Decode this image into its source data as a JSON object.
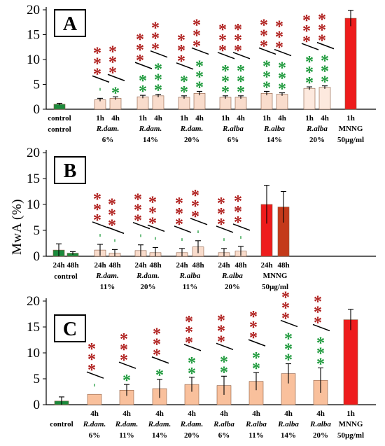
{
  "y_axis_label": "MwA (%)",
  "chart_data": [
    {
      "panel": "A",
      "type": "bar",
      "ylim": [
        0,
        20
      ],
      "yticks": [
        0,
        5,
        10,
        15,
        20
      ],
      "categories": [
        "control",
        "1h",
        "4h",
        "1h",
        "4h",
        "1h",
        "4h",
        "1h",
        "4h",
        "1h",
        "4h",
        "1h",
        "4h",
        "1h"
      ],
      "values": [
        1.0,
        1.9,
        2.2,
        2.5,
        2.7,
        2.4,
        3.2,
        2.4,
        2.4,
        3.2,
        3.0,
        4.2,
        4.4,
        18.3
      ],
      "errors": [
        0.2,
        0.3,
        0.3,
        0.3,
        0.3,
        0.3,
        0.4,
        0.3,
        0.3,
        0.4,
        0.3,
        0.3,
        0.3,
        1.6
      ],
      "colors": [
        "#1b8a3c",
        "#f9dccc",
        "#f9dccc",
        "#f9dccc",
        "#f9dccc",
        "#f9dccc",
        "#f9dccc",
        "#f9dccc",
        "#f9dccc",
        "#f9dccc",
        "#f9dccc",
        "#fde9de",
        "#fde9de",
        "#ee1c1c"
      ],
      "red_stars": [
        "",
        "***",
        "***",
        "***",
        "***",
        "***",
        "***",
        "***",
        "***",
        "***",
        "***",
        "***",
        "***",
        ""
      ],
      "green_stars": [
        "",
        "'",
        "*",
        "**",
        "***",
        "**",
        "***",
        "***",
        "***",
        "***",
        "***",
        "***",
        "***",
        ""
      ],
      "group_labels": [
        {
          "text": "control",
          "from": 0,
          "to": 0
        },
        {
          "text": "R.dam.",
          "sub": "6%",
          "from": 1,
          "to": 2
        },
        {
          "text": "R.dam.",
          "sub": "14%",
          "from": 3,
          "to": 4
        },
        {
          "text": "R.dam.",
          "sub": "20%",
          "from": 5,
          "to": 6
        },
        {
          "text": "R.alba",
          "sub": "6%",
          "from": 7,
          "to": 8
        },
        {
          "text": "R.alba",
          "sub": "14%",
          "from": 9,
          "to": 10
        },
        {
          "text": "R.alba",
          "sub": "20%",
          "from": 11,
          "to": 12
        },
        {
          "text": "MNNG",
          "sub": "50µg/ml",
          "from": 13,
          "to": 13
        }
      ]
    },
    {
      "panel": "B",
      "type": "bar",
      "ylim": [
        0,
        20
      ],
      "yticks": [
        0,
        5,
        10,
        15,
        20
      ],
      "categories": [
        "24h",
        "48h",
        "24h",
        "48h",
        "24h",
        "48h",
        "24h",
        "48h",
        "24h",
        "48h",
        "24h",
        "48h"
      ],
      "values": [
        1.2,
        0.6,
        1.2,
        0.6,
        1.1,
        0.7,
        0.7,
        1.8,
        0.7,
        1.0,
        10.0,
        9.5
      ],
      "errors": [
        1.2,
        0.3,
        1.1,
        0.7,
        1.1,
        1.0,
        0.8,
        1.2,
        0.8,
        0.9,
        3.7,
        3.0
      ],
      "colors": [
        "#1b8a3c",
        "#1b8a3c",
        "#f9dccc",
        "#f9dccc",
        "#f9dccc",
        "#f9dccc",
        "#f9dccc",
        "#f9dccc",
        "#f9dccc",
        "#f9dccc",
        "#ee1c1c",
        "#c43a1a"
      ],
      "red_stars": [
        "",
        "",
        "***",
        "***",
        "***",
        "***",
        "***",
        "***",
        "***",
        "***",
        "",
        ""
      ],
      "green_stars": [
        "",
        "",
        "'",
        "'",
        "'",
        "'",
        "'",
        "'",
        "'",
        "'",
        "",
        ""
      ],
      "group_labels": [
        {
          "text": "control",
          "from": 0,
          "to": 1
        },
        {
          "text": "R.dam.",
          "sub": "11%",
          "from": 2,
          "to": 3
        },
        {
          "text": "R.dam.",
          "sub": "20%",
          "from": 4,
          "to": 5
        },
        {
          "text": "R.alba",
          "sub": "11%",
          "from": 6,
          "to": 7
        },
        {
          "text": "R.alba",
          "sub": "20%",
          "from": 8,
          "to": 9
        },
        {
          "text": "MNNG",
          "sub": "50µg/ml",
          "from": 10,
          "to": 11
        }
      ]
    },
    {
      "panel": "C",
      "type": "bar",
      "ylim": [
        0,
        20
      ],
      "yticks": [
        0,
        5,
        10,
        15,
        20
      ],
      "categories": [
        "control",
        "4h",
        "4h",
        "4h",
        "4h",
        "4h",
        "4h",
        "4h",
        "4h",
        "1h"
      ],
      "values": [
        0.7,
        2.0,
        2.8,
        3.1,
        3.9,
        3.7,
        4.5,
        6.0,
        4.7,
        16.4
      ],
      "errors": [
        0.8,
        0.0,
        1.1,
        1.8,
        1.4,
        1.8,
        1.7,
        1.9,
        2.4,
        2.0
      ],
      "colors": [
        "#1b8a3c",
        "#f9c09c",
        "#f9c09c",
        "#f9c09c",
        "#f9c09c",
        "#f9c09c",
        "#f9c09c",
        "#f9c09c",
        "#f9c09c",
        "#ee1c1c"
      ],
      "red_stars": [
        "",
        "***",
        "***",
        "***",
        "***",
        "***",
        "***",
        "***",
        "***",
        ""
      ],
      "green_stars": [
        "",
        "'",
        "*",
        "*",
        "**",
        "**",
        "**",
        "***",
        "***",
        ""
      ],
      "sublabels": [
        "",
        "R.dam.",
        "R.dam.",
        "R.dam.",
        "R.dam.",
        "R.alba",
        "R.alba",
        "R.alba",
        "R.alba",
        "MNNG"
      ],
      "sub2": [
        "",
        "6%",
        "11%",
        "14%",
        "20%",
        "6%",
        "11%",
        "14%",
        "20%",
        "50µg/ml"
      ]
    }
  ]
}
